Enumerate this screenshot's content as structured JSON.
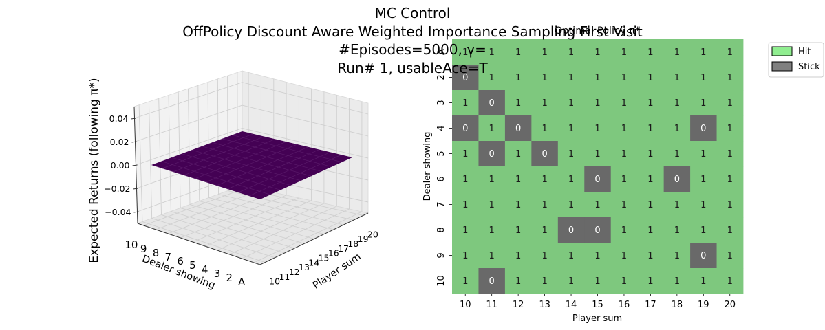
{
  "figure": {
    "suptitle_lines": [
      "MC Control",
      "OffPolicy Discount Aware Weighted Importance Sampling First Visit",
      "#Episodes=5000, γ=",
      "Run# 1, usableAce=T"
    ]
  },
  "colors": {
    "hit": "#7ec87e",
    "stick": "#696969",
    "legend_hit": "#90ee90",
    "legend_stick": "#808080",
    "surface": "#440154",
    "surface_line": "#5a1a6a"
  },
  "chart_data": [
    {
      "type": "surface3d",
      "title": "",
      "xlabel": "Player sum",
      "ylabel": "Dealer showing",
      "zlabel": "Expected Returns (following π*)",
      "x_ticks": [
        "10",
        "11",
        "12",
        "13",
        "14",
        "15",
        "16",
        "17",
        "18",
        "19",
        "20"
      ],
      "y_ticks": [
        "A",
        "2",
        "3",
        "4",
        "5",
        "6",
        "7",
        "8",
        "9",
        "10"
      ],
      "z_ticks": [
        "−0.04",
        "−0.02",
        "0.00",
        "0.02",
        "0.04"
      ],
      "z_tick_values": [
        -0.04,
        -0.02,
        0.0,
        0.02,
        0.04
      ],
      "zlim": [
        -0.05,
        0.05
      ],
      "surface_value": 0.0
    },
    {
      "type": "heatmap",
      "title": "Optimal Policy π*",
      "xlabel": "Player sum",
      "ylabel": "Dealer showing",
      "x": [
        "10",
        "11",
        "12",
        "13",
        "14",
        "15",
        "16",
        "17",
        "18",
        "19",
        "20"
      ],
      "y": [
        "A",
        "2",
        "3",
        "4",
        "5",
        "6",
        "7",
        "8",
        "9",
        "10"
      ],
      "values": [
        [
          1,
          1,
          1,
          1,
          1,
          1,
          1,
          1,
          1,
          1,
          1
        ],
        [
          0,
          1,
          1,
          1,
          1,
          1,
          1,
          1,
          1,
          1,
          1
        ],
        [
          1,
          0,
          1,
          1,
          1,
          1,
          1,
          1,
          1,
          1,
          1
        ],
        [
          0,
          1,
          0,
          1,
          1,
          1,
          1,
          1,
          1,
          0,
          1
        ],
        [
          1,
          0,
          1,
          0,
          1,
          1,
          1,
          1,
          1,
          1,
          1
        ],
        [
          1,
          1,
          1,
          1,
          1,
          0,
          1,
          1,
          0,
          1,
          1
        ],
        [
          1,
          1,
          1,
          1,
          1,
          1,
          1,
          1,
          1,
          1,
          1
        ],
        [
          1,
          1,
          1,
          1,
          0,
          0,
          1,
          1,
          1,
          1,
          1
        ],
        [
          1,
          1,
          1,
          1,
          1,
          1,
          1,
          1,
          1,
          0,
          1
        ],
        [
          1,
          0,
          1,
          1,
          1,
          1,
          1,
          1,
          1,
          1,
          1
        ]
      ],
      "legend": [
        {
          "label": "Hit",
          "value": 1
        },
        {
          "label": "Stick",
          "value": 0
        }
      ],
      "legend_position": "outside-top-right"
    }
  ]
}
